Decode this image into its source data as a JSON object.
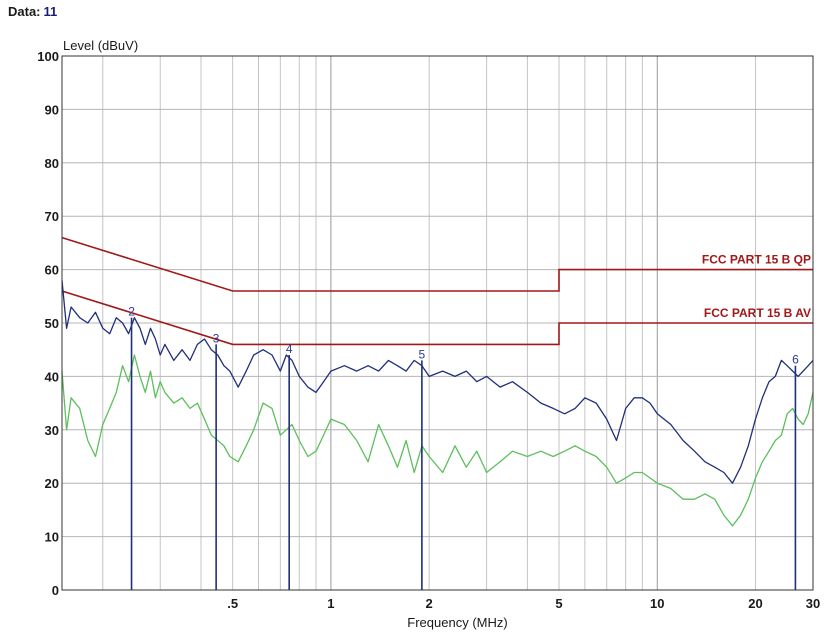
{
  "header": {
    "label": "Data:",
    "value": "11"
  },
  "chart_data": {
    "type": "line",
    "x_scale": "log",
    "xlim": [
      0.15,
      30
    ],
    "ylim": [
      0,
      100
    ],
    "xlabel": "Frequency (MHz)",
    "ylabel": "Level (dBuV)",
    "grid": true,
    "x_ticks": [
      {
        "v": 0.5,
        "label": ".5"
      },
      {
        "v": 1,
        "label": "1"
      },
      {
        "v": 2,
        "label": "2"
      },
      {
        "v": 5,
        "label": "5"
      },
      {
        "v": 10,
        "label": "10"
      },
      {
        "v": 20,
        "label": "20"
      },
      {
        "v": 30,
        "label": "30"
      }
    ],
    "y_ticks": [
      0,
      10,
      20,
      30,
      40,
      50,
      60,
      70,
      80,
      90,
      100
    ],
    "limits": [
      {
        "name": "FCC PART 15 B QP",
        "color": "#a01818",
        "points": [
          [
            0.15,
            66
          ],
          [
            0.5,
            56
          ],
          [
            5,
            56
          ],
          [
            5,
            60
          ],
          [
            30,
            60
          ]
        ]
      },
      {
        "name": "FCC PART 15 B AV",
        "color": "#a01818",
        "points": [
          [
            0.15,
            56
          ],
          [
            0.5,
            46
          ],
          [
            5,
            46
          ],
          [
            5,
            50
          ],
          [
            30,
            50
          ]
        ]
      }
    ],
    "series": [
      {
        "color": "#1f2f7a",
        "points": [
          [
            0.15,
            58
          ],
          [
            0.155,
            49
          ],
          [
            0.16,
            53
          ],
          [
            0.17,
            51
          ],
          [
            0.18,
            50
          ],
          [
            0.19,
            52
          ],
          [
            0.2,
            49
          ],
          [
            0.21,
            48
          ],
          [
            0.22,
            51
          ],
          [
            0.23,
            50
          ],
          [
            0.24,
            48
          ],
          [
            0.25,
            51
          ],
          [
            0.26,
            49
          ],
          [
            0.27,
            46
          ],
          [
            0.28,
            49
          ],
          [
            0.29,
            47
          ],
          [
            0.3,
            44
          ],
          [
            0.31,
            46
          ],
          [
            0.33,
            43
          ],
          [
            0.35,
            45
          ],
          [
            0.37,
            43
          ],
          [
            0.39,
            46
          ],
          [
            0.41,
            47
          ],
          [
            0.43,
            45
          ],
          [
            0.45,
            44
          ],
          [
            0.47,
            42
          ],
          [
            0.49,
            41
          ],
          [
            0.52,
            38
          ],
          [
            0.55,
            41
          ],
          [
            0.58,
            44
          ],
          [
            0.62,
            45
          ],
          [
            0.66,
            44
          ],
          [
            0.7,
            41
          ],
          [
            0.73,
            44
          ],
          [
            0.76,
            43
          ],
          [
            0.8,
            40
          ],
          [
            0.85,
            38
          ],
          [
            0.9,
            37
          ],
          [
            0.95,
            39
          ],
          [
            1.0,
            41
          ],
          [
            1.1,
            42
          ],
          [
            1.2,
            41
          ],
          [
            1.3,
            42
          ],
          [
            1.4,
            41
          ],
          [
            1.5,
            43
          ],
          [
            1.6,
            42
          ],
          [
            1.7,
            41
          ],
          [
            1.8,
            43
          ],
          [
            1.9,
            42
          ],
          [
            2.0,
            40
          ],
          [
            2.2,
            41
          ],
          [
            2.4,
            40
          ],
          [
            2.6,
            41
          ],
          [
            2.8,
            39
          ],
          [
            3.0,
            40
          ],
          [
            3.3,
            38
          ],
          [
            3.6,
            39
          ],
          [
            4.0,
            37
          ],
          [
            4.4,
            35
          ],
          [
            4.8,
            34
          ],
          [
            5.2,
            33
          ],
          [
            5.6,
            34
          ],
          [
            6.0,
            36
          ],
          [
            6.5,
            35
          ],
          [
            7.0,
            32
          ],
          [
            7.5,
            28
          ],
          [
            8.0,
            34
          ],
          [
            8.5,
            36
          ],
          [
            9.0,
            36
          ],
          [
            9.5,
            35
          ],
          [
            10,
            33
          ],
          [
            11,
            31
          ],
          [
            12,
            28
          ],
          [
            13,
            26
          ],
          [
            14,
            24
          ],
          [
            15,
            23
          ],
          [
            16,
            22
          ],
          [
            17,
            20
          ],
          [
            18,
            23
          ],
          [
            19,
            27
          ],
          [
            20,
            32
          ],
          [
            21,
            36
          ],
          [
            22,
            39
          ],
          [
            23,
            40
          ],
          [
            24,
            43
          ],
          [
            25,
            42
          ],
          [
            26,
            41
          ],
          [
            27,
            40
          ],
          [
            28,
            41
          ],
          [
            29,
            42
          ],
          [
            30,
            43
          ]
        ]
      },
      {
        "color": "#5cbf5c",
        "points": [
          [
            0.15,
            41
          ],
          [
            0.155,
            30
          ],
          [
            0.16,
            36
          ],
          [
            0.17,
            34
          ],
          [
            0.18,
            28
          ],
          [
            0.19,
            25
          ],
          [
            0.2,
            31
          ],
          [
            0.21,
            34
          ],
          [
            0.22,
            37
          ],
          [
            0.23,
            42
          ],
          [
            0.24,
            39
          ],
          [
            0.25,
            44
          ],
          [
            0.26,
            40
          ],
          [
            0.27,
            37
          ],
          [
            0.28,
            41
          ],
          [
            0.29,
            36
          ],
          [
            0.3,
            39
          ],
          [
            0.31,
            37
          ],
          [
            0.33,
            35
          ],
          [
            0.35,
            36
          ],
          [
            0.37,
            34
          ],
          [
            0.39,
            35
          ],
          [
            0.41,
            32
          ],
          [
            0.43,
            29
          ],
          [
            0.45,
            28
          ],
          [
            0.47,
            27
          ],
          [
            0.49,
            25
          ],
          [
            0.52,
            24
          ],
          [
            0.55,
            27
          ],
          [
            0.58,
            30
          ],
          [
            0.62,
            35
          ],
          [
            0.66,
            34
          ],
          [
            0.7,
            29
          ],
          [
            0.73,
            30
          ],
          [
            0.76,
            31
          ],
          [
            0.8,
            28
          ],
          [
            0.85,
            25
          ],
          [
            0.9,
            26
          ],
          [
            0.95,
            29
          ],
          [
            1.0,
            32
          ],
          [
            1.1,
            31
          ],
          [
            1.2,
            28
          ],
          [
            1.3,
            24
          ],
          [
            1.4,
            31
          ],
          [
            1.5,
            27
          ],
          [
            1.6,
            23
          ],
          [
            1.7,
            28
          ],
          [
            1.8,
            22
          ],
          [
            1.9,
            27
          ],
          [
            2.0,
            25
          ],
          [
            2.2,
            22
          ],
          [
            2.4,
            27
          ],
          [
            2.6,
            23
          ],
          [
            2.8,
            26
          ],
          [
            3.0,
            22
          ],
          [
            3.3,
            24
          ],
          [
            3.6,
            26
          ],
          [
            4.0,
            25
          ],
          [
            4.4,
            26
          ],
          [
            4.8,
            25
          ],
          [
            5.2,
            26
          ],
          [
            5.6,
            27
          ],
          [
            6.0,
            26
          ],
          [
            6.5,
            25
          ],
          [
            7.0,
            23
          ],
          [
            7.5,
            20
          ],
          [
            8.0,
            21
          ],
          [
            8.5,
            22
          ],
          [
            9.0,
            22
          ],
          [
            9.5,
            21
          ],
          [
            10,
            20
          ],
          [
            11,
            19
          ],
          [
            12,
            17
          ],
          [
            13,
            17
          ],
          [
            14,
            18
          ],
          [
            15,
            17
          ],
          [
            16,
            14
          ],
          [
            17,
            12
          ],
          [
            18,
            14
          ],
          [
            19,
            17
          ],
          [
            20,
            21
          ],
          [
            21,
            24
          ],
          [
            22,
            26
          ],
          [
            23,
            28
          ],
          [
            24,
            29
          ],
          [
            25,
            33
          ],
          [
            26,
            34
          ],
          [
            27,
            32
          ],
          [
            28,
            31
          ],
          [
            29,
            33
          ],
          [
            30,
            37
          ]
        ]
      }
    ],
    "markers": [
      {
        "label": "2",
        "x": 0.245,
        "y": 51
      },
      {
        "label": "3",
        "x": 0.445,
        "y": 46
      },
      {
        "label": "4",
        "x": 0.745,
        "y": 44
      },
      {
        "label": "5",
        "x": 1.9,
        "y": 43
      },
      {
        "label": "6",
        "x": 26.5,
        "y": 42
      }
    ]
  }
}
